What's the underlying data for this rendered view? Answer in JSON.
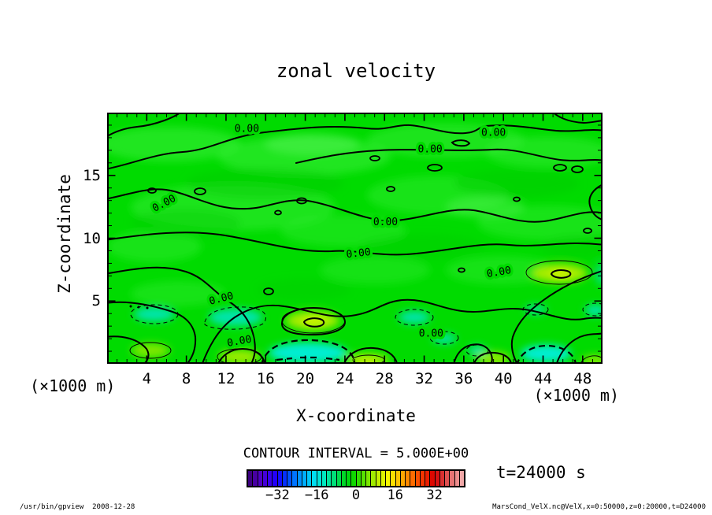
{
  "page": {
    "footer_left": "/usr/bin/gpview  2008-12-28",
    "footer_right": "MarsCond_VelX.nc@VelX,x=0:50000,z=0:20000,t=D24000"
  },
  "chart_data": {
    "type": "contour",
    "title": "zonal velocity",
    "xlabel": "X-coordinate",
    "ylabel": "Z-coordinate",
    "x_unit": "(×1000 m)",
    "y_unit": "(×1000 m)",
    "x_range": [
      0,
      50
    ],
    "z_range": [
      0,
      20
    ],
    "x_ticks": [
      4,
      8,
      12,
      16,
      20,
      24,
      28,
      32,
      36,
      40,
      44,
      48
    ],
    "y_ticks": [
      5,
      10,
      15
    ],
    "x_minor_step": 1,
    "y_minor_step": 1,
    "contour_interval": 5.0,
    "contour_interval_label": "CONTOUR INTERVAL = 5.000E+00",
    "contour_label": "0.00",
    "labeled_level": 0.0,
    "time_label": "t=24000 s",
    "zero_labels": [
      {
        "x": 14.1,
        "z": 18.7,
        "rot": 0
      },
      {
        "x": 39.0,
        "z": 18.4,
        "rot": 0
      },
      {
        "x": 32.6,
        "z": 17.1,
        "rot": 0
      },
      {
        "x": 5.9,
        "z": 12.8,
        "rot": -28
      },
      {
        "x": 28.1,
        "z": 11.3,
        "rot": 0
      },
      {
        "x": 25.4,
        "z": 8.8,
        "rot": -6
      },
      {
        "x": 11.6,
        "z": 5.2,
        "rot": -14
      },
      {
        "x": 39.6,
        "z": 7.3,
        "rot": -10
      },
      {
        "x": 13.4,
        "z": 1.8,
        "rot": -10
      },
      {
        "x": 32.7,
        "z": 2.4,
        "rot": 0
      }
    ],
    "palette": {
      "base_green": "#00DB00",
      "light_green": "#38EE38",
      "negative_cyan": "#00E6C8",
      "positive_yellow_green": "#B4EE00",
      "contour_line": "#000000"
    },
    "colorbar": {
      "ticks": [
        -32,
        -16,
        0,
        16,
        32
      ],
      "value_range": [
        -44,
        44
      ],
      "cells": 44,
      "gradient_stops": [
        "#3C0080",
        "#5000C0",
        "#3C00E8",
        "#1800FF",
        "#0040FF",
        "#0080FF",
        "#00B4FF",
        "#00E0F0",
        "#00E8C0",
        "#00E080",
        "#00D830",
        "#00D400",
        "#40E000",
        "#88E800",
        "#C8F000",
        "#F8F800",
        "#FFC800",
        "#FF9000",
        "#FF5800",
        "#F02800",
        "#D80000",
        "#D83838",
        "#E87878",
        "#F0A8A8"
      ]
    }
  }
}
